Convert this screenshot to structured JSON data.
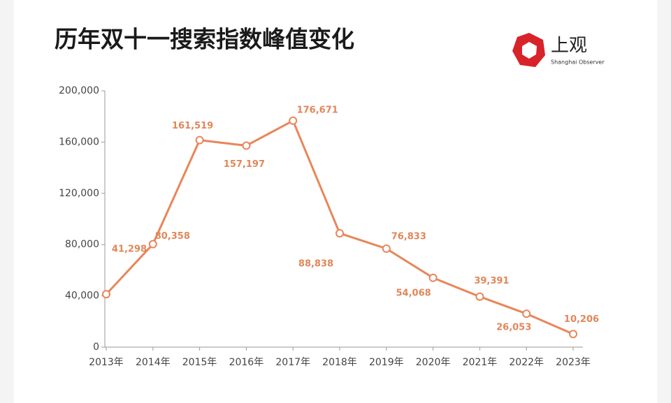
{
  "chart_data": {
    "type": "line",
    "title": "历年双十一搜索指数峰值变化",
    "logo": {
      "name": "上观",
      "subtitle": "Shanghai Observer"
    },
    "categories": [
      "2013年",
      "2014年",
      "2015年",
      "2016年",
      "2017年",
      "2018年",
      "2019年",
      "2020年",
      "2021年",
      "2022年",
      "2023年"
    ],
    "values": [
      41298,
      80358,
      161519,
      157197,
      176671,
      88838,
      76833,
      54068,
      39391,
      26053,
      10206
    ],
    "value_labels": [
      "41,298",
      "80,358",
      "161,519",
      "157,197",
      "176,671",
      "88,838",
      "76,833",
      "54,068",
      "39,391",
      "26,053",
      "10,206"
    ],
    "color": "#e8865a",
    "ylim": [
      0,
      200000
    ],
    "yticks": [
      0,
      {
        "value": 40000,
        "label": "40,000"
      },
      {
        "value": 80000,
        "label": "80,000"
      },
      {
        "value": 120000,
        "label": "120,000"
      },
      {
        "value": 160000,
        "label": "160,000"
      },
      {
        "value": 200000,
        "label": "200,000"
      }
    ],
    "grid": false
  }
}
